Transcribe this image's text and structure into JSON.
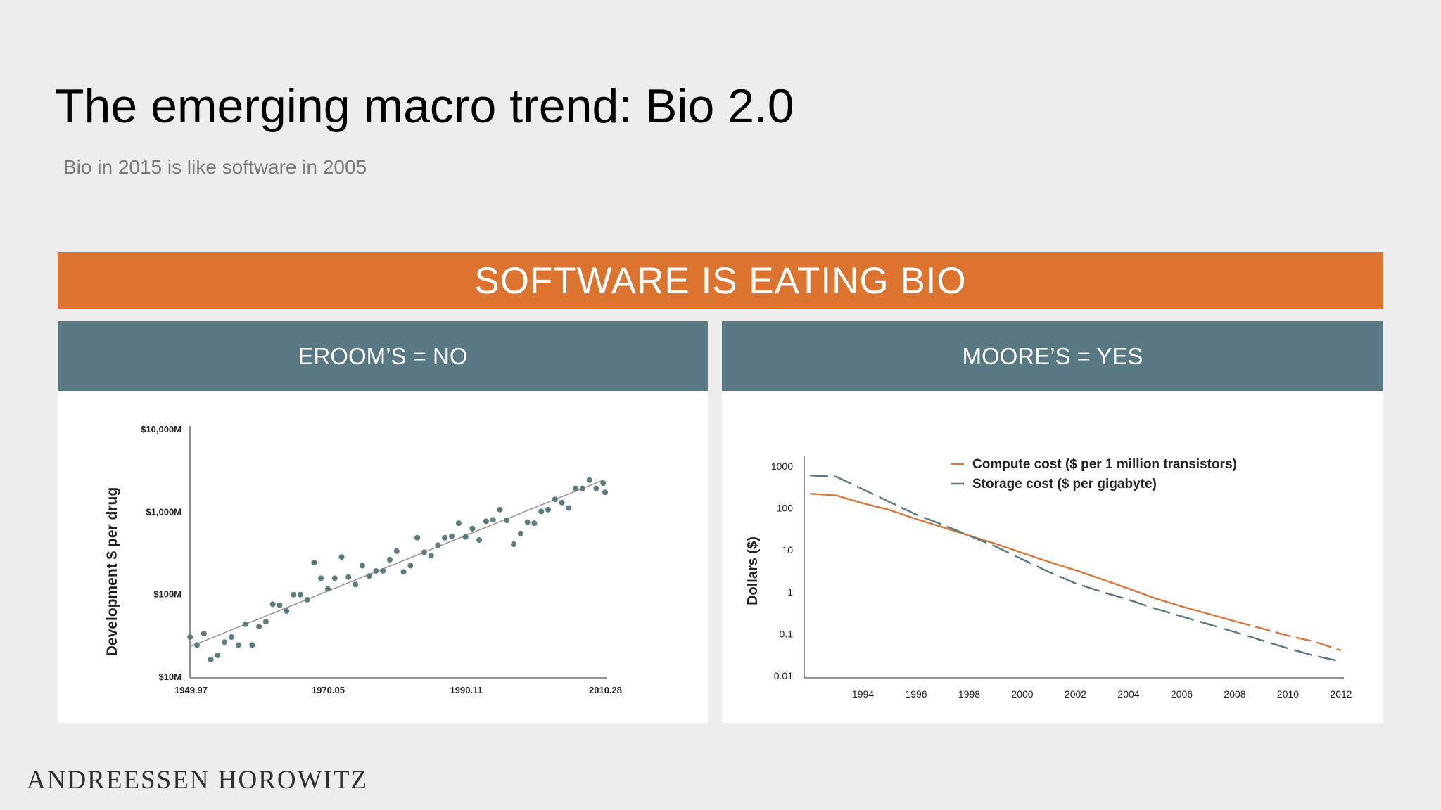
{
  "slide": {
    "title": "The emerging macro trend: Bio 2.0",
    "subtitle": "Bio in 2015 is like software in 2005",
    "banner": "SOFTWARE IS EATING BIO",
    "footer": "ANDREESSEN HOROWITZ"
  },
  "colors": {
    "banner": "#dc732f",
    "panel_header": "#587983",
    "dots": "#5b7b7e",
    "trend": "#9a9a9a",
    "compute": "#d9773a",
    "storage": "#587983"
  },
  "chart_data": [
    {
      "type": "scatter",
      "header": "EROOM’S = NO",
      "ylabel": "Development $ per drug",
      "xlabel": "",
      "yscale": "log",
      "ylim": [
        10,
        10000
      ],
      "xlim": [
        1949.97,
        2010.28
      ],
      "y_ticks": [
        {
          "value": 10000,
          "label": "$10,000M"
        },
        {
          "value": 1000,
          "label": "$1,000M"
        },
        {
          "value": 100,
          "label": "$100M"
        },
        {
          "value": 10,
          "label": "$10M"
        }
      ],
      "x_ticks": [
        {
          "value": 1949.97,
          "label": "1949.97"
        },
        {
          "value": 1970.05,
          "label": "1970.05"
        },
        {
          "value": 1990.11,
          "label": "1990.11"
        },
        {
          "value": 2010.28,
          "label": "2010.28"
        }
      ],
      "trend": [
        [
          1950,
          23
        ],
        [
          2010,
          2400
        ]
      ],
      "points": [
        [
          1950,
          30
        ],
        [
          1951,
          24
        ],
        [
          1952,
          33
        ],
        [
          1953,
          16
        ],
        [
          1954,
          18
        ],
        [
          1955,
          26
        ],
        [
          1956,
          30
        ],
        [
          1957,
          24
        ],
        [
          1958,
          43
        ],
        [
          1959,
          24
        ],
        [
          1960,
          40
        ],
        [
          1961,
          46
        ],
        [
          1962,
          75
        ],
        [
          1963,
          73
        ],
        [
          1964,
          62
        ],
        [
          1965,
          98
        ],
        [
          1966,
          98
        ],
        [
          1967,
          85
        ],
        [
          1968,
          240
        ],
        [
          1969,
          155
        ],
        [
          1970,
          115
        ],
        [
          1971,
          155
        ],
        [
          1972,
          280
        ],
        [
          1973,
          160
        ],
        [
          1974,
          130
        ],
        [
          1975,
          220
        ],
        [
          1976,
          165
        ],
        [
          1977,
          190
        ],
        [
          1978,
          190
        ],
        [
          1979,
          260
        ],
        [
          1980,
          330
        ],
        [
          1981,
          185
        ],
        [
          1982,
          220
        ],
        [
          1983,
          480
        ],
        [
          1984,
          320
        ],
        [
          1985,
          290
        ],
        [
          1986,
          390
        ],
        [
          1987,
          480
        ],
        [
          1988,
          500
        ],
        [
          1989,
          720
        ],
        [
          1990,
          490
        ],
        [
          1991,
          620
        ],
        [
          1992,
          450
        ],
        [
          1993,
          760
        ],
        [
          1994,
          790
        ],
        [
          1995,
          1050
        ],
        [
          1996,
          780
        ],
        [
          1997,
          400
        ],
        [
          1998,
          540
        ],
        [
          1999,
          740
        ],
        [
          2000,
          720
        ],
        [
          2001,
          1000
        ],
        [
          2002,
          1050
        ],
        [
          2003,
          1400
        ],
        [
          2004,
          1280
        ],
        [
          2005,
          1100
        ],
        [
          2006,
          1900
        ],
        [
          2007,
          1900
        ],
        [
          2008,
          2400
        ],
        [
          2009,
          1900
        ],
        [
          2010,
          2200
        ],
        [
          2010.28,
          1700
        ]
      ]
    },
    {
      "type": "line",
      "header": "MOORE’S = YES",
      "ylabel": "Dollars ($)",
      "xlabel": "",
      "yscale": "log",
      "ylim": [
        0.01,
        1000
      ],
      "xlim": [
        1992,
        2012
      ],
      "y_ticks": [
        {
          "value": 1000,
          "label": "1000"
        },
        {
          "value": 100,
          "label": "100"
        },
        {
          "value": 10,
          "label": "10"
        },
        {
          "value": 1,
          "label": "1"
        },
        {
          "value": 0.1,
          "label": "0.1"
        },
        {
          "value": 0.01,
          "label": "0.01"
        }
      ],
      "x_ticks": [
        {
          "value": 1994,
          "label": "1994"
        },
        {
          "value": 1996,
          "label": "1996"
        },
        {
          "value": 1998,
          "label": "1998"
        },
        {
          "value": 2000,
          "label": "2000"
        },
        {
          "value": 2002,
          "label": "2002"
        },
        {
          "value": 2004,
          "label": "2004"
        },
        {
          "value": 2006,
          "label": "2006"
        },
        {
          "value": 2008,
          "label": "2008"
        },
        {
          "value": 2010,
          "label": "2010"
        },
        {
          "value": 2012,
          "label": "2012"
        }
      ],
      "legend_position": "top-right",
      "series": [
        {
          "name": "Compute cost ($ per 1 million transistors)",
          "style": "solid-then-dashed",
          "points": [
            [
              1992,
              220
            ],
            [
              1993,
              200
            ],
            [
              1994,
              130
            ],
            [
              1995,
              90
            ],
            [
              1996,
              55
            ],
            [
              1997,
              35
            ],
            [
              1998,
              22
            ],
            [
              1999,
              14
            ],
            [
              2000,
              8.5
            ],
            [
              2001,
              5.2
            ],
            [
              2002,
              3.3
            ],
            [
              2003,
              2.0
            ],
            [
              2004,
              1.2
            ],
            [
              2005,
              0.7
            ],
            [
              2006,
              0.45
            ],
            [
              2007,
              0.3
            ],
            [
              2008,
              0.2
            ],
            [
              2009,
              0.135
            ],
            [
              2010,
              0.09
            ],
            [
              2011,
              0.065
            ],
            [
              2012,
              0.04
            ]
          ]
        },
        {
          "name": "Storage cost ($ per gigabyte)",
          "style": "dashed",
          "points": [
            [
              1992,
              600
            ],
            [
              1993,
              560
            ],
            [
              1994,
              280
            ],
            [
              1995,
              140
            ],
            [
              1996,
              70
            ],
            [
              1997,
              40
            ],
            [
              1998,
              22
            ],
            [
              1999,
              12
            ],
            [
              2000,
              6
            ],
            [
              2001,
              3
            ],
            [
              2002,
              1.6
            ],
            [
              2003,
              1.0
            ],
            [
              2004,
              0.65
            ],
            [
              2005,
              0.4
            ],
            [
              2006,
              0.26
            ],
            [
              2007,
              0.17
            ],
            [
              2008,
              0.11
            ],
            [
              2009,
              0.07
            ],
            [
              2010,
              0.045
            ],
            [
              2011,
              0.03
            ],
            [
              2012,
              0.022
            ]
          ]
        }
      ]
    }
  ]
}
